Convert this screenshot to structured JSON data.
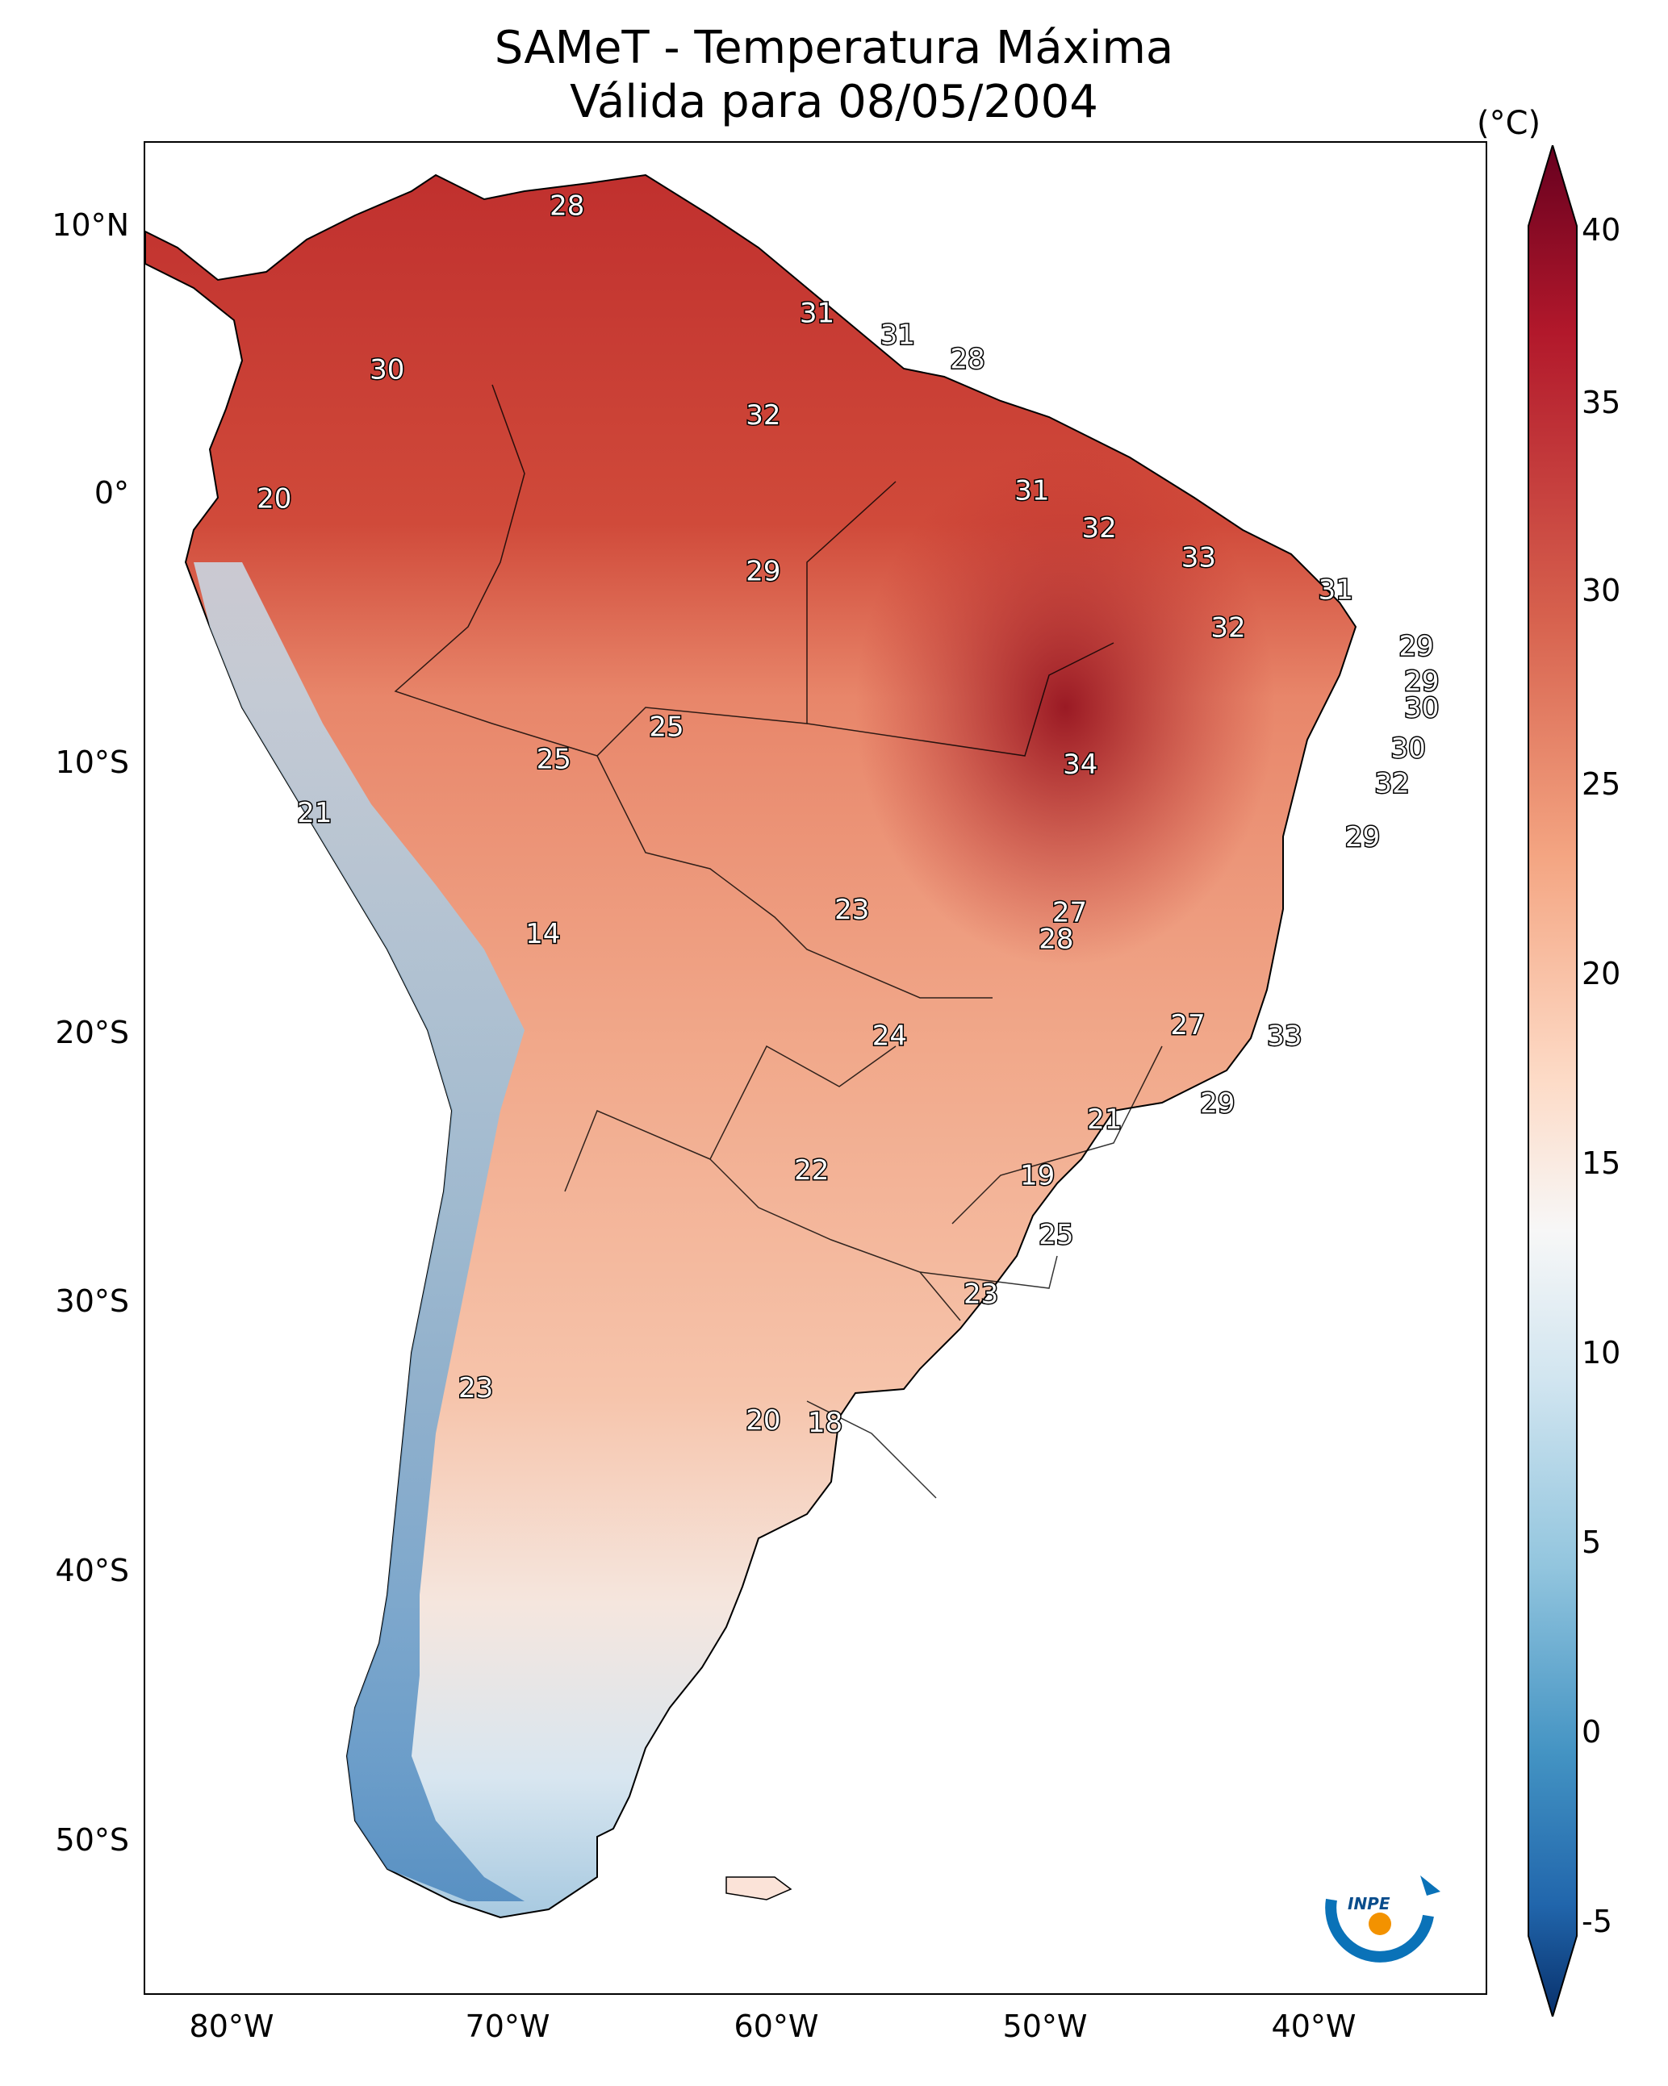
{
  "title": {
    "line1": "SAMeT - Temperatura Máxima",
    "line2": "Válida para 08/05/2004"
  },
  "axes": {
    "lat_labels": [
      "10°N",
      "0°",
      "10°S",
      "20°S",
      "30°S",
      "40°S",
      "50°S"
    ],
    "lon_labels": [
      "80°W",
      "70°W",
      "60°W",
      "50°W",
      "40°W"
    ]
  },
  "colorbar": {
    "unit": "(°C)",
    "ticks": [
      "40",
      "35",
      "30",
      "25",
      "20",
      "15",
      "10",
      "5",
      "0",
      "-5"
    ],
    "range": [
      -5,
      40
    ],
    "colors": [
      "#08306b",
      "#2166ac",
      "#4393c3",
      "#92c5de",
      "#d1e5f0",
      "#f7f7f7",
      "#fddbc7",
      "#f4a582",
      "#d6604d",
      "#b2182b",
      "#67001f"
    ]
  },
  "map_data": {
    "type": "heatmap",
    "variable": "Temperatura Máxima",
    "units": "°C",
    "lon_range": [
      -83,
      -33
    ],
    "lat_range": [
      -56,
      13
    ],
    "station_labels": [
      {
        "text": "28",
        "lon": -67.3,
        "lat": 10.6
      },
      {
        "text": "31",
        "lon": -58.0,
        "lat": 6.6
      },
      {
        "text": "31",
        "lon": -55.0,
        "lat": 5.8
      },
      {
        "text": "28",
        "lon": -52.4,
        "lat": 4.9
      },
      {
        "text": "30",
        "lon": -74.0,
        "lat": 4.5
      },
      {
        "text": "32",
        "lon": -60.0,
        "lat": 2.8
      },
      {
        "text": "20",
        "lon": -78.2,
        "lat": -0.3
      },
      {
        "text": "31",
        "lon": -50.0,
        "lat": 0.0
      },
      {
        "text": "32",
        "lon": -47.5,
        "lat": -1.4
      },
      {
        "text": "33",
        "lon": -43.8,
        "lat": -2.5
      },
      {
        "text": "29",
        "lon": -60.0,
        "lat": -3.0
      },
      {
        "text": "31",
        "lon": -38.7,
        "lat": -3.7
      },
      {
        "text": "32",
        "lon": -42.7,
        "lat": -5.1
      },
      {
        "text": "29",
        "lon": -35.7,
        "lat": -5.8
      },
      {
        "text": "29",
        "lon": -35.5,
        "lat": -7.1
      },
      {
        "text": "30",
        "lon": -35.5,
        "lat": -8.1
      },
      {
        "text": "25",
        "lon": -63.6,
        "lat": -8.8
      },
      {
        "text": "30",
        "lon": -36.0,
        "lat": -9.6
      },
      {
        "text": "25",
        "lon": -67.8,
        "lat": -10.0
      },
      {
        "text": "34",
        "lon": -48.2,
        "lat": -10.2
      },
      {
        "text": "32",
        "lon": -36.6,
        "lat": -10.9
      },
      {
        "text": "21",
        "lon": -76.7,
        "lat": -12.0
      },
      {
        "text": "29",
        "lon": -37.7,
        "lat": -12.9
      },
      {
        "text": "23",
        "lon": -56.7,
        "lat": -15.6
      },
      {
        "text": "27",
        "lon": -48.6,
        "lat": -15.7
      },
      {
        "text": "14",
        "lon": -68.2,
        "lat": -16.5
      },
      {
        "text": "28",
        "lon": -49.1,
        "lat": -16.7
      },
      {
        "text": "27",
        "lon": -44.2,
        "lat": -19.9
      },
      {
        "text": "24",
        "lon": -55.3,
        "lat": -20.3
      },
      {
        "text": "33",
        "lon": -40.6,
        "lat": -20.3
      },
      {
        "text": "29",
        "lon": -43.1,
        "lat": -22.8
      },
      {
        "text": "21",
        "lon": -47.3,
        "lat": -23.4
      },
      {
        "text": "22",
        "lon": -58.2,
        "lat": -25.3
      },
      {
        "text": "19",
        "lon": -49.8,
        "lat": -25.5
      },
      {
        "text": "25",
        "lon": -49.1,
        "lat": -27.7
      },
      {
        "text": "23",
        "lon": -51.9,
        "lat": -29.9
      },
      {
        "text": "23",
        "lon": -70.7,
        "lat": -33.4
      },
      {
        "text": "20",
        "lon": -60.0,
        "lat": -34.6
      },
      {
        "text": "18",
        "lon": -57.7,
        "lat": -34.7
      }
    ]
  },
  "logo": {
    "text": "INPE"
  }
}
